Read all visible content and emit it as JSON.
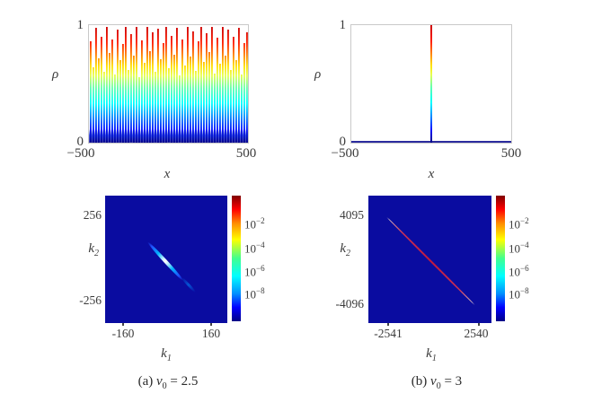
{
  "figure": {
    "captions": {
      "a": {
        "prefix": "(a)",
        "var": "v",
        "sub": "0",
        "value": "= 2.5"
      },
      "b": {
        "prefix": "(b)",
        "var": "v",
        "sub": "0",
        "value": "= 3"
      }
    }
  },
  "top_left": {
    "ylabel": "ρ",
    "xlabel": "x",
    "ytick_top": "1",
    "ytick_bottom": "0",
    "xtick_left": "−500",
    "xtick_right": "500"
  },
  "top_right": {
    "ylabel": "ρ",
    "xlabel": "x",
    "ytick_top": "1",
    "ytick_bottom": "0",
    "xtick_left": "−500",
    "xtick_right": "500"
  },
  "bottom_left": {
    "ylabel_sym": "k",
    "ylabel_sub": "2",
    "xlabel_sym": "k",
    "xlabel_sub": "1",
    "ytick_top": "256",
    "ytick_bottom": "-256",
    "xtick_left": "-160",
    "xtick_right": "160"
  },
  "bottom_right": {
    "ylabel_sym": "k",
    "ylabel_sub": "2",
    "xlabel_sym": "k",
    "xlabel_sub": "1",
    "ytick_top": "4095",
    "ytick_bottom": "-4096",
    "xtick_left": "-2541",
    "xtick_right": "2540"
  },
  "colorbar": {
    "base": "10",
    "exponents": [
      "−2",
      "−4",
      "−6",
      "−8"
    ]
  },
  "colors": {
    "heatmap_background": "#0a0ca0",
    "frame_gray": "#c9c9c9",
    "baseline_navy": "#2b2b9e",
    "streak_core_left": "#ffffff",
    "line_red_right": "#c01840",
    "jet_stops": [
      "#000085",
      "#0000ff",
      "#00ffff",
      "#ffff00",
      "#ff0000",
      "#800000"
    ]
  },
  "chart_data": [
    {
      "type": "line",
      "panel": "top-left",
      "caption": "(a) v0 = 2.5",
      "xlabel": "x",
      "ylabel": "rho",
      "xlim": [
        -500,
        500
      ],
      "ylim": [
        0,
        1
      ],
      "grid": false,
      "description": "Dense comb of vertical density spikes over the whole domain, tips between ~0.55 and 1.0, colored by height with a jet colormap (dark blue at 0 through cyan and yellow to red at 1)",
      "spike_heights": [
        0.86,
        0.64,
        0.98,
        0.72,
        0.9,
        0.6,
        1.0,
        0.76,
        0.88,
        0.58,
        0.96,
        0.7,
        0.84,
        1.0,
        0.62,
        0.92,
        0.74,
        0.99,
        0.56,
        0.87,
        0.68,
        1.0,
        0.78,
        0.94,
        0.6,
        0.97,
        0.71,
        0.85,
        1.0,
        0.63,
        0.91,
        0.75,
        0.98,
        0.57,
        0.88,
        0.66,
        1.0,
        0.73,
        0.95,
        0.61,
        0.86,
        1.0,
        0.69,
        0.93,
        0.77,
        0.99,
        0.59,
        0.89,
        0.67,
        1.0,
        0.74,
        0.96,
        0.62,
        0.9,
        0.7,
        0.98,
        0.58,
        0.85,
        0.94
      ]
    },
    {
      "type": "line",
      "panel": "top-right",
      "caption": "(b) v0 = 3",
      "xlabel": "x",
      "ylabel": "rho",
      "xlim": [
        -500,
        500
      ],
      "ylim": [
        0,
        1
      ],
      "grid": false,
      "description": "Single localized spike at x ≈ 0 reaching rho = 1, jet-colored along its height; rho ≈ 0 elsewhere (flat navy baseline)",
      "spike_x": 0,
      "spike_height": 1.0
    },
    {
      "type": "heatmap",
      "panel": "bottom-left",
      "xlabel": "k1",
      "ylabel": "k2",
      "xticks": [
        -160,
        160
      ],
      "yticks": [
        256,
        -256
      ],
      "colorbar_scale": "log",
      "colorbar_ticks": [
        "1e-2",
        "1e-4",
        "1e-6",
        "1e-8"
      ],
      "colormap": "jet",
      "description": "Uniform dark-blue background (values ≈ 1e-9) with a short anti-diagonal streak through the origin, cyan edges and white core, plus a fainter detached blue segment to its lower right"
    },
    {
      "type": "heatmap",
      "panel": "bottom-right",
      "xlabel": "k1",
      "ylabel": "k2",
      "xticks": [
        -2541,
        2540
      ],
      "yticks": [
        4095,
        -4096
      ],
      "colorbar_scale": "log",
      "colorbar_ticks": [
        "1e-2",
        "1e-4",
        "1e-6",
        "1e-8"
      ],
      "colormap": "jet",
      "description": "Uniform dark-blue background with one long thin red anti-diagonal line running from about (-2541, 4095) to (2540, -4096), paler at both ends"
    }
  ]
}
